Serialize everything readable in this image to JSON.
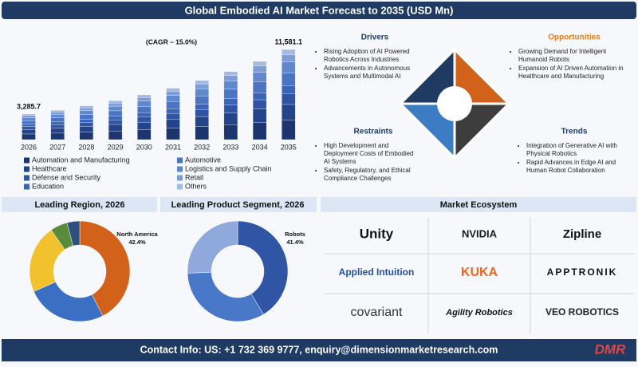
{
  "title": "Global Embodied AI Market Forecast to 2035 (USD Mn)",
  "chart_data": [
    {
      "type": "bar",
      "stacked": true,
      "subtitle": "(CAGR – 15.0%)",
      "categories": [
        "2026",
        "2027",
        "2028",
        "2029",
        "2030",
        "2031",
        "2032",
        "2033",
        "2034",
        "2035"
      ],
      "series": [
        {
          "name": "Automation and Manufacturing",
          "color": "#1c356e",
          "values": [
            722.9,
            831,
            956,
            1099,
            1264,
            1454,
            1672,
            1923,
            2211,
            2547.8
          ]
        },
        {
          "name": "Healthcare",
          "color": "#24448a",
          "values": [
            558.6,
            642,
            739,
            849,
            977,
            1124,
            1292,
            1486,
            1709,
            1968.8
          ]
        },
        {
          "name": "Defense and Security",
          "color": "#2e54a3",
          "values": [
            394.3,
            453,
            521,
            600,
            690,
            793,
            912,
            1049,
            1206,
            1389.7
          ]
        },
        {
          "name": "Education",
          "color": "#3b63b6",
          "values": [
            295.7,
            340,
            391,
            450,
            517,
            595,
            684,
            787,
            905,
            1042.3
          ]
        },
        {
          "name": "Automotive",
          "color": "#4c74c2",
          "values": [
            460.0,
            529,
            608,
            700,
            805,
            925,
            1064,
            1224,
            1407,
            1621.4
          ]
        },
        {
          "name": "Logistics and Supply Chain",
          "color": "#6187cd",
          "values": [
            394.3,
            453,
            521,
            600,
            690,
            793,
            912,
            1049,
            1206,
            1389.7
          ]
        },
        {
          "name": "Retail",
          "color": "#7d9dd7",
          "values": [
            262.9,
            302,
            348,
            400,
            460,
            529,
            608,
            699,
            804,
            926.5
          ]
        },
        {
          "name": "Others",
          "color": "#a3bbe3",
          "values": [
            197.0,
            227,
            261,
            300,
            345,
            397,
            456,
            524,
            603,
            694.9
          ]
        }
      ],
      "total_labels": [
        {
          "x": "2026",
          "value": 3285.7,
          "label": "3,285.7"
        },
        {
          "x": "2035",
          "value": 11581.1,
          "label": "11,581.1"
        }
      ]
    },
    {
      "type": "donut",
      "title": "Leading Region, 2026",
      "categories": [
        "North America",
        null,
        null,
        null,
        null
      ],
      "values": [
        42.4,
        26.0,
        22.0,
        5.5,
        4.1
      ],
      "value_labels": [
        "42.4%",
        null,
        null,
        null,
        null
      ],
      "colors": [
        "#d2621a",
        "#3b6fc4",
        "#f2c12e",
        "#5a8a3c",
        "#2f4f80"
      ]
    },
    {
      "type": "donut",
      "title": "Leading Product Segment, 2026",
      "categories": [
        "Robots",
        null,
        null
      ],
      "values": [
        41.4,
        33.0,
        25.6
      ],
      "value_labels": [
        "41.4%",
        null,
        null
      ],
      "colors": [
        "#2f55a4",
        "#4a78c8",
        "#8fa9dc"
      ]
    }
  ],
  "quadrants": [
    {
      "title": "Drivers",
      "items": [
        "Rising Adoption of AI Powered Robotics Across Industries",
        "Advancements in Autonomous Systems and Multimodal AI"
      ]
    },
    {
      "title": "Opportunities",
      "items": [
        "Growing Demand for Intelligent Humanoid Robots",
        "Expansion of AI Driven Automation in Healthcare and Manufacturing"
      ]
    },
    {
      "title": "Restraints",
      "items": [
        "High Development and Deployment Costs of Embodied AI Systems",
        "Safety, Regulatory, and Ethical Compliance Challenges"
      ]
    },
    {
      "title": "Trends",
      "items": [
        "Integration of Generative AI with Physical Robotics",
        "Rapid Advances in Edge AI and Human Robot Collaboration"
      ]
    }
  ],
  "ecosystem": {
    "title": "Market Ecosystem",
    "companies": [
      "Unity",
      "NVIDIA",
      "Zipline",
      "Applied Intuition",
      "KUKA",
      "APPTRONIK",
      "covariant",
      "Agility Robotics",
      "VEO ROBOTICS"
    ]
  },
  "footer": {
    "contact": "Contact Info: US: +1 732 369 9777, enquiry@dimensionmarketresearch.com",
    "brand": "DMR"
  }
}
